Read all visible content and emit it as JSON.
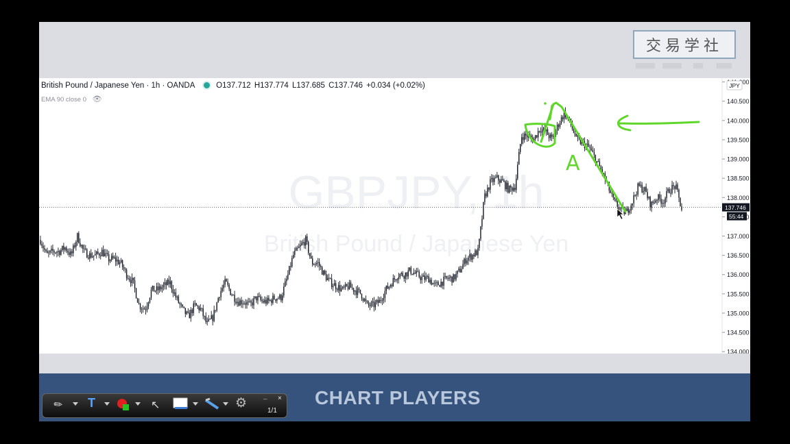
{
  "chart_data": {
    "type": "candlestick",
    "title": "British Pound / Japanese Yen · 1h · OANDA",
    "symbol": "GBPJPY",
    "timeframe": "1h",
    "watermark_symbol": "GBPJPY, 1h",
    "watermark_name": "British Pound / Japanese Yen",
    "ohlc": {
      "o": "O137.712",
      "h": "H137.774",
      "l": "L137.685",
      "c": "C137.746",
      "chg": "+0.034 (+0.02%)"
    },
    "indicator": "EMA 90 close 0",
    "currency": "JPY",
    "y_ticks": [
      "134.000",
      "134.500",
      "135.000",
      "135.500",
      "136.000",
      "136.500",
      "137.000",
      "137.500",
      "138.000",
      "138.500",
      "139.000",
      "139.500",
      "140.000",
      "140.500",
      "141.000"
    ],
    "ylim": [
      133.95,
      141.1
    ],
    "last_price": "137.746",
    "countdown": "55:44",
    "price_path": [
      136.9,
      136.5,
      136.6,
      136.6,
      136.7,
      136.5,
      137.0,
      136.6,
      136.5,
      136.5,
      136.6,
      136.4,
      136.4,
      136.3,
      136.0,
      135.8,
      135.2,
      135.1,
      135.6,
      135.6,
      135.7,
      135.8,
      135.4,
      135.1,
      134.9,
      135.2,
      135.1,
      134.7,
      134.9,
      135.5,
      135.8,
      135.5,
      135.3,
      135.3,
      135.2,
      135.4,
      135.3,
      135.3,
      135.4,
      135.4,
      135.9,
      136.5,
      136.7,
      136.9,
      136.3,
      136.3,
      136.0,
      135.8,
      135.7,
      135.6,
      135.7,
      135.6,
      135.5,
      135.2,
      135.2,
      135.3,
      135.6,
      135.8,
      136.0,
      136.0,
      136.1,
      136.0,
      135.9,
      135.9,
      135.7,
      135.8,
      135.9,
      135.9,
      136.1,
      136.4,
      136.5,
      136.6,
      138.0,
      138.4,
      138.5,
      138.4,
      138.2,
      138.3,
      139.6,
      139.6,
      139.5,
      139.8,
      139.7,
      139.5,
      139.9,
      140.2,
      139.9,
      139.5,
      139.4,
      139.3,
      139.0,
      138.7,
      138.3,
      137.9,
      137.7,
      137.6,
      137.9,
      138.3,
      138.2,
      137.8,
      138.0,
      137.9,
      138.2,
      138.3,
      137.7
    ]
  },
  "watermark_logo": "交易学社",
  "brand_text": "CHART PLAYERS",
  "toolbar": {
    "page": "1/1",
    "minimize": "_",
    "close": "×"
  },
  "annotations": {
    "label": "A",
    "color": "#5ed62a"
  },
  "colors": {
    "candle": "#131722",
    "background": "#ffffff",
    "band": "#35537d",
    "annotation": "#5ed62a"
  }
}
